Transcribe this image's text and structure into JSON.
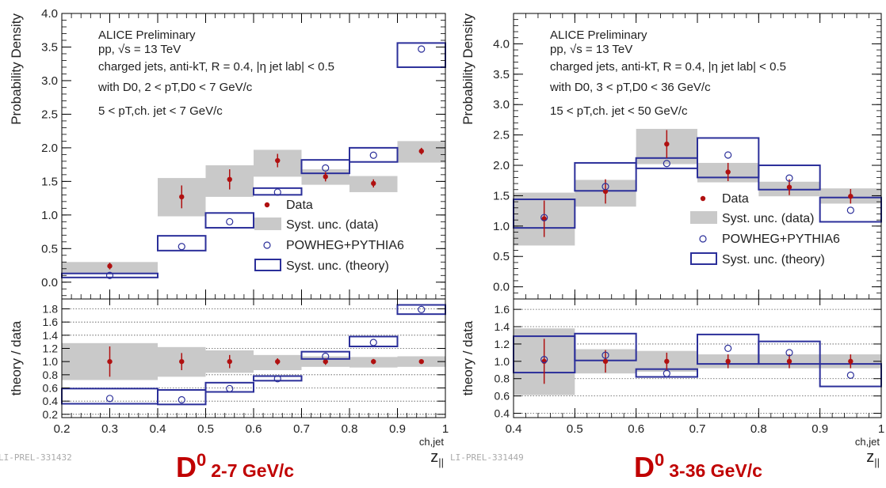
{
  "chart_data": [
    {
      "type": "scatter",
      "xlabel_main": "z",
      "xlabel_sub": "||",
      "xlabel_sup": "ch,jet",
      "ylabel_top": "Probability Density",
      "ylabel_bottom": "theory / data",
      "preprint_id": "LI-PREL-331432",
      "footer_main": "D",
      "footer_sup": "0",
      "footer_range": "2-7 GeV/c",
      "annotations": [
        "ALICE Preliminary",
        "pp, √s = 13 TeV",
        "charged jets, anti-kT, R = 0.4, |η jet lab| < 0.5",
        "with D0, 2 < pT,D0 < 7 GeV/c",
        "5 < pT,ch. jet < 7 GeV/c"
      ],
      "legend": [
        "Data",
        "Syst. unc. (data)",
        "POWHEG+PYTHIA6",
        "Syst. unc. (theory)"
      ],
      "legend_position": "middle-right",
      "xlim": [
        0.2,
        1.0
      ],
      "ylim_top": [
        -0.25,
        4.0
      ],
      "ylim_bottom": [
        0.15,
        1.95
      ],
      "xticks": [
        "0.2",
        "0.3",
        "0.4",
        "0.5",
        "0.6",
        "0.7",
        "0.8",
        "0.9",
        "1"
      ],
      "yticks_top": [
        "0.0",
        "0.5",
        "1.0",
        "1.5",
        "2.0",
        "2.5",
        "3.0",
        "3.5",
        "4.0"
      ],
      "yticks_bottom": [
        "0.2",
        "0.4",
        "0.6",
        "0.8",
        "1.0",
        "1.2",
        "1.4",
        "1.6",
        "1.8"
      ],
      "bins": [
        [
          0.2,
          0.4
        ],
        [
          0.4,
          0.5
        ],
        [
          0.5,
          0.6
        ],
        [
          0.6,
          0.7
        ],
        [
          0.7,
          0.8
        ],
        [
          0.8,
          0.9
        ],
        [
          0.9,
          1.0
        ]
      ],
      "data": {
        "x": [
          0.3,
          0.45,
          0.55,
          0.65,
          0.75,
          0.85,
          0.95
        ],
        "y": [
          0.24,
          1.27,
          1.53,
          1.81,
          1.57,
          1.47,
          1.95
        ],
        "stat": [
          0.05,
          0.17,
          0.15,
          0.1,
          0.07,
          0.06,
          0.05
        ],
        "syst_low": [
          0.14,
          0.98,
          1.27,
          1.57,
          1.45,
          1.34,
          1.78
        ],
        "syst_high": [
          0.3,
          1.55,
          1.74,
          1.97,
          1.68,
          1.58,
          2.1
        ]
      },
      "theory": {
        "x": [
          0.3,
          0.45,
          0.55,
          0.65,
          0.75,
          0.85,
          0.95
        ],
        "y": [
          0.1,
          0.53,
          0.9,
          1.34,
          1.7,
          1.89,
          3.47
        ],
        "syst_low": [
          0.07,
          0.47,
          0.81,
          1.3,
          1.62,
          1.79,
          3.2
        ],
        "syst_high": [
          0.13,
          0.69,
          1.03,
          1.4,
          1.82,
          2.0,
          3.56
        ]
      },
      "ratio": {
        "data_y": [
          1.0,
          1.0,
          1.0,
          1.0,
          1.0,
          1.0,
          1.0
        ],
        "data_stat": [
          0.23,
          0.13,
          0.1,
          0.05,
          0.05,
          0.04,
          0.03
        ],
        "data_syst_low": [
          0.72,
          0.77,
          0.83,
          0.87,
          0.92,
          0.91,
          0.92
        ],
        "data_syst_high": [
          1.28,
          1.22,
          1.17,
          1.1,
          1.08,
          1.07,
          1.08
        ],
        "theory_y": [
          0.44,
          0.42,
          0.59,
          0.74,
          1.08,
          1.29,
          1.79
        ],
        "theory_syst_low": [
          0.36,
          0.35,
          0.54,
          0.71,
          1.04,
          1.23,
          1.72
        ],
        "theory_syst_high": [
          0.59,
          0.57,
          0.68,
          0.78,
          1.15,
          1.38,
          1.86
        ]
      }
    },
    {
      "type": "scatter",
      "xlabel_main": "z",
      "xlabel_sub": "||",
      "xlabel_sup": "ch,jet",
      "ylabel_top": "Probability Density",
      "ylabel_bottom": "theory / data",
      "preprint_id": "LI-PREL-331449",
      "footer_main": "D",
      "footer_sup": "0",
      "footer_range": "3-36 GeV/c",
      "annotations": [
        "ALICE Preliminary",
        "pp, √s = 13 TeV",
        "charged jets, anti-kT, R = 0.4, |η jet lab| < 0.5",
        "with D0, 3 < pT,D0 < 36 GeV/c",
        "15 < pT,ch. jet < 50 GeV/c"
      ],
      "legend": [
        "Data",
        "Syst. unc. (data)",
        "POWHEG+PYTHIA6",
        "Syst. unc. (theory)"
      ],
      "legend_position": "middle-right",
      "xlim": [
        0.4,
        1.0
      ],
      "ylim_top": [
        -0.2,
        4.5
      ],
      "ylim_bottom": [
        0.35,
        1.72
      ],
      "xticks": [
        "0.4",
        "0.5",
        "0.6",
        "0.7",
        "0.8",
        "0.9",
        "1"
      ],
      "yticks_top": [
        "0.0",
        "0.5",
        "1.0",
        "1.5",
        "2.0",
        "2.5",
        "3.0",
        "3.5",
        "4.0"
      ],
      "yticks_bottom": [
        "0.4",
        "0.6",
        "0.8",
        "1.0",
        "1.2",
        "1.4",
        "1.6"
      ],
      "bins": [
        [
          0.4,
          0.5
        ],
        [
          0.5,
          0.6
        ],
        [
          0.6,
          0.7
        ],
        [
          0.7,
          0.8
        ],
        [
          0.8,
          0.9
        ],
        [
          0.9,
          1.0
        ]
      ],
      "data": {
        "x": [
          0.45,
          0.55,
          0.65,
          0.75,
          0.85,
          0.95
        ],
        "y": [
          1.12,
          1.57,
          2.35,
          1.89,
          1.64,
          1.49
        ],
        "stat": [
          0.3,
          0.2,
          0.23,
          0.15,
          0.13,
          0.12
        ],
        "syst_low": [
          0.68,
          1.32,
          2.02,
          1.72,
          1.49,
          1.37
        ],
        "syst_high": [
          1.55,
          1.76,
          2.6,
          2.04,
          1.73,
          1.62
        ]
      },
      "theory": {
        "x": [
          0.45,
          0.55,
          0.65,
          0.75,
          0.85,
          0.95
        ],
        "y": [
          1.14,
          1.65,
          2.03,
          2.17,
          1.79,
          1.26
        ],
        "syst_low": [
          0.97,
          1.58,
          1.95,
          1.8,
          1.6,
          1.07
        ],
        "syst_high": [
          1.44,
          2.04,
          2.12,
          2.45,
          2.0,
          1.47
        ]
      },
      "ratio": {
        "data_y": [
          1.0,
          1.0,
          1.0,
          1.0,
          1.0,
          1.0
        ],
        "data_stat": [
          0.26,
          0.13,
          0.1,
          0.08,
          0.08,
          0.08
        ],
        "data_syst_low": [
          0.61,
          0.86,
          0.88,
          0.92,
          0.92,
          0.92
        ],
        "data_syst_high": [
          1.38,
          1.14,
          1.12,
          1.08,
          1.08,
          1.08
        ],
        "theory_y": [
          1.02,
          1.07,
          0.86,
          1.15,
          1.1,
          0.84
        ],
        "theory_syst_low": [
          0.87,
          1.01,
          0.82,
          0.97,
          0.97,
          0.71
        ],
        "theory_syst_high": [
          1.29,
          1.32,
          0.91,
          1.31,
          1.23,
          0.97
        ]
      }
    }
  ]
}
